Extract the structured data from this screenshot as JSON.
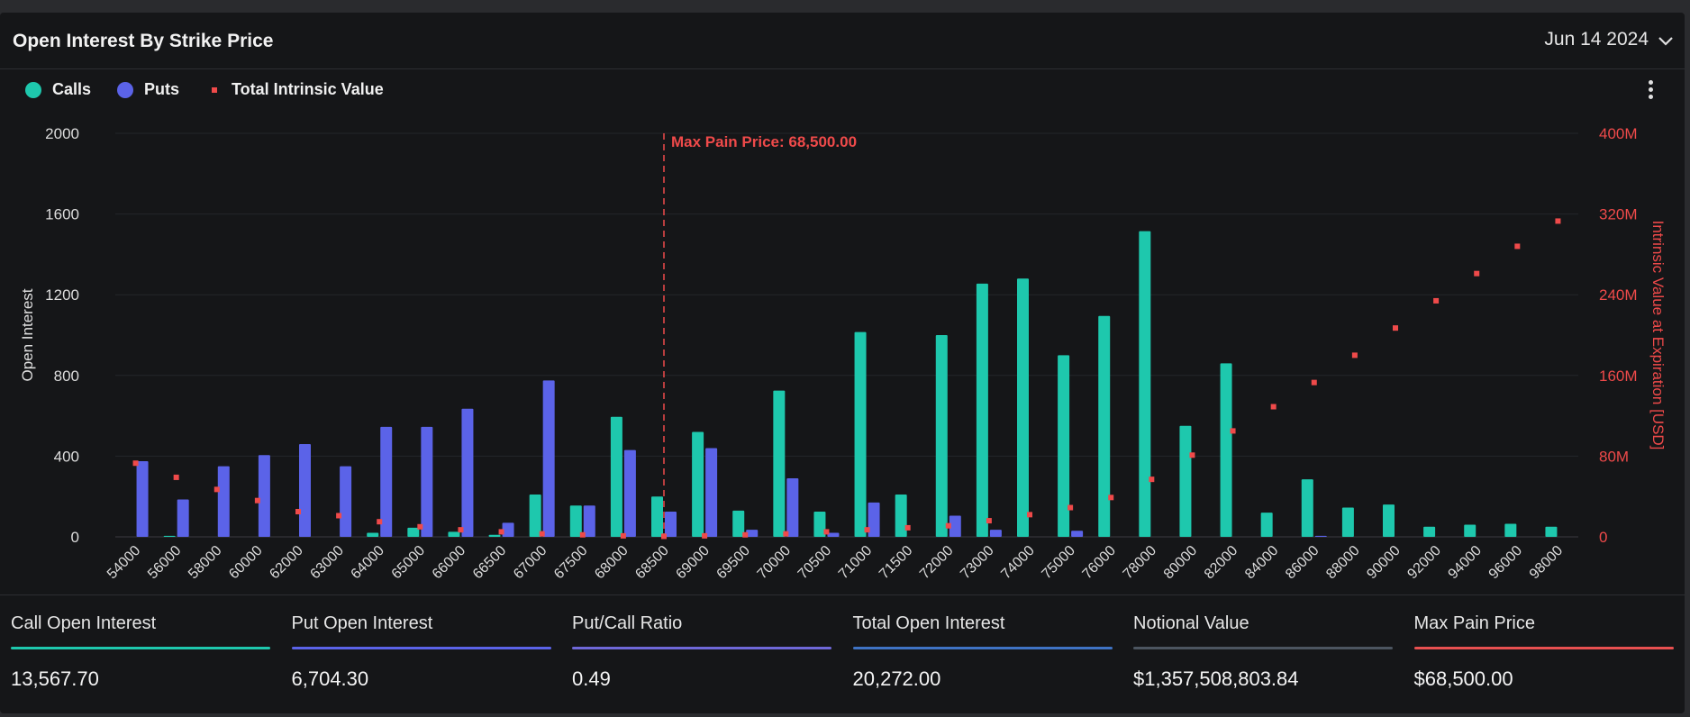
{
  "header": {
    "title": "Open Interest By Strike Price",
    "date": "Jun 14 2024"
  },
  "legend": {
    "calls": "Calls",
    "puts": "Puts",
    "intrinsic": "Total Intrinsic Value"
  },
  "colors": {
    "calls": "#1ec8ad",
    "puts": "#5b63e8",
    "intrinsic": "#ef4a4a",
    "bg": "#151618"
  },
  "chart_data": {
    "type": "bar",
    "categories": [
      "54000",
      "56000",
      "58000",
      "60000",
      "62000",
      "63000",
      "64000",
      "65000",
      "66000",
      "66500",
      "67000",
      "67500",
      "68000",
      "68500",
      "69000",
      "69500",
      "70000",
      "70500",
      "71000",
      "71500",
      "72000",
      "73000",
      "74000",
      "75000",
      "76000",
      "78000",
      "80000",
      "82000",
      "84000",
      "86000",
      "88000",
      "90000",
      "92000",
      "94000",
      "96000",
      "98000"
    ],
    "series": [
      {
        "name": "Calls",
        "axis": "left",
        "values": [
          0,
          5,
          0,
          0,
          0,
          0,
          20,
          45,
          25,
          10,
          210,
          155,
          595,
          200,
          520,
          130,
          725,
          125,
          1015,
          210,
          1000,
          1255,
          1280,
          900,
          1095,
          1515,
          550,
          860,
          120,
          285,
          145,
          160,
          50,
          60,
          65,
          50
        ]
      },
      {
        "name": "Puts",
        "axis": "left",
        "values": [
          375,
          185,
          350,
          405,
          460,
          350,
          545,
          545,
          635,
          70,
          775,
          155,
          430,
          125,
          440,
          35,
          290,
          20,
          170,
          0,
          105,
          35,
          0,
          30,
          0,
          0,
          0,
          0,
          0,
          5,
          0,
          0,
          0,
          0,
          0,
          0
        ]
      },
      {
        "name": "Total Intrinsic Value",
        "axis": "right",
        "type": "scatter",
        "values": [
          73,
          59,
          47,
          36,
          25,
          21,
          15,
          10,
          7,
          5,
          3,
          2,
          1,
          0.5,
          1,
          2,
          3,
          5,
          7,
          9,
          11,
          16,
          22,
          29,
          39,
          57,
          81,
          105,
          129,
          153,
          180,
          207,
          234,
          261,
          288,
          313
        ]
      }
    ],
    "y_left": {
      "label": "Open Interest",
      "min": 0,
      "max": 2000,
      "ticks": [
        "0",
        "400",
        "800",
        "1200",
        "1600",
        "2000"
      ]
    },
    "y_right": {
      "label": "Intrinsic Value at Expiration [USD]",
      "min": 0,
      "max": 400,
      "unit": "M",
      "ticks": [
        "0",
        "80M",
        "160M",
        "240M",
        "320M",
        "400M"
      ]
    },
    "annotation": {
      "label": "Max Pain Price: 68,500.00",
      "at_category": "68500"
    },
    "grid": true,
    "legend_position": "top-left"
  },
  "stats": [
    {
      "label": "Call Open Interest",
      "value": "13,567.70",
      "color": "#1ec8ad"
    },
    {
      "label": "Put Open Interest",
      "value": "6,704.30",
      "color": "#5b63e8"
    },
    {
      "label": "Put/Call Ratio",
      "value": "0.49",
      "color": "#6f68d8"
    },
    {
      "label": "Total Open Interest",
      "value": "20,272.00",
      "color": "#3f73c4"
    },
    {
      "label": "Notional Value",
      "value": "$1,357,508,803.84",
      "color": "#4c5560"
    },
    {
      "label": "Max Pain Price",
      "value": "$68,500.00",
      "color": "#e85050"
    }
  ]
}
